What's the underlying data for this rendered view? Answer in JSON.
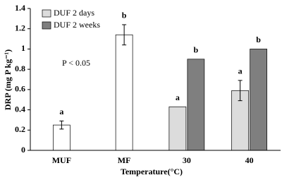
{
  "chart_data": {
    "type": "bar",
    "categories": [
      "MUF",
      "MF",
      "30",
      "40"
    ],
    "series": [
      {
        "name": "DUF 2 days",
        "color": "#dcdcdc",
        "colors": [
          "#ffffff",
          "#ffffff",
          "#dcdcdc",
          "#dcdcdc"
        ],
        "values": [
          0.25,
          1.14,
          0.43,
          0.59
        ],
        "errors": [
          0.04,
          0.1,
          null,
          0.1
        ],
        "letters": [
          "a",
          "b",
          "a",
          "a"
        ]
      },
      {
        "name": "DUF 2 weeks",
        "color": "#7f7f7f",
        "values": [
          null,
          null,
          0.9,
          1.0
        ],
        "letters": [
          null,
          null,
          "b",
          "b"
        ]
      }
    ],
    "ylim": [
      0,
      1.4
    ],
    "yticks": [
      0,
      0.2,
      0.4,
      0.6,
      0.8,
      1,
      1.2,
      1.4
    ],
    "y_label": "DRP (mg P kg⁻¹)",
    "x_label": "Temperature(°C)",
    "annotation": "P < 0.05",
    "legend": "top-left",
    "grid": false
  }
}
